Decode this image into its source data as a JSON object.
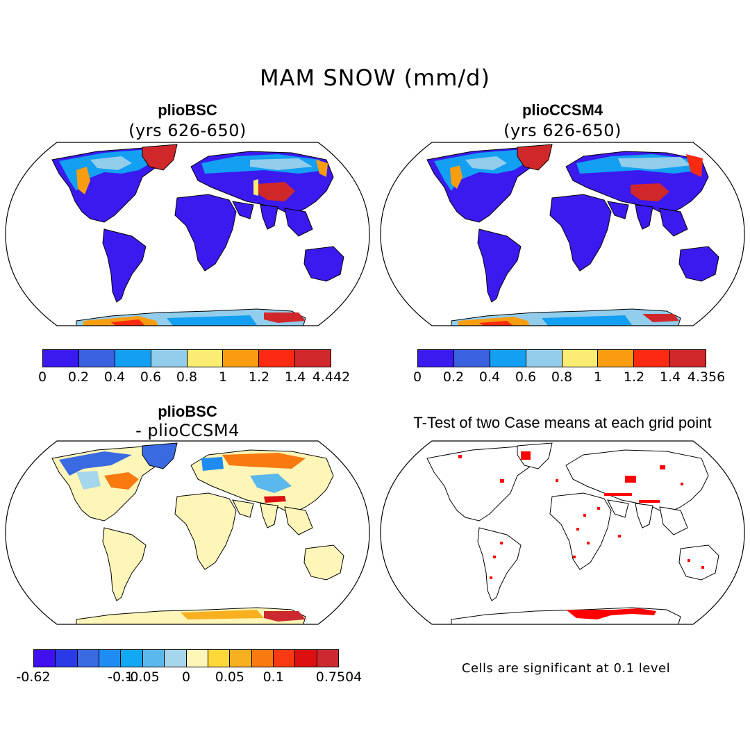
{
  "figure": {
    "title": "MAM SNOW (mm/d)"
  },
  "panels": [
    {
      "id": "plioBSC",
      "title": "plioBSC",
      "subtitle": "(yrs 626-650)",
      "colorbar": {
        "colors": [
          "#3a1aee",
          "#3a62e0",
          "#13a0f2",
          "#93cdec",
          "#fbed74",
          "#f99d10",
          "#fb2a10",
          "#d0282a"
        ],
        "ticks": [
          "0",
          "0.2",
          "0.4",
          "0.6",
          "0.8",
          "1",
          "1.2",
          "1.4",
          "4.442"
        ]
      }
    },
    {
      "id": "plioCCSM4",
      "title": "plioCCSM4",
      "subtitle": "(yrs 626-650)",
      "colorbar": {
        "colors": [
          "#3a1aee",
          "#3a62e0",
          "#13a0f2",
          "#93cdec",
          "#fbed74",
          "#f99d10",
          "#fb2a10",
          "#d0282a"
        ],
        "ticks": [
          "0",
          "0.2",
          "0.4",
          "0.6",
          "0.8",
          "1",
          "1.2",
          "1.4",
          "4.356"
        ]
      }
    },
    {
      "id": "difference",
      "title": "plioBSC",
      "subtitle": "- plioCCSM4",
      "colorbar": {
        "colors": [
          "#4010f0",
          "#2a3ae8",
          "#3a6ae2",
          "#1e8cf2",
          "#12a8f2",
          "#5ab8ec",
          "#a6d6ec",
          "#fdf6b8",
          "#fdd838",
          "#f9b020",
          "#f87a10",
          "#f83a12",
          "#dc1010",
          "#cc2a30"
        ],
        "ticks": [
          "-0.62",
          "-0.1",
          "-0.05",
          "0",
          "0.05",
          "0.1",
          "0.7504"
        ]
      }
    },
    {
      "id": "ttest",
      "title": "T-Test of two Case means at each grid point",
      "note": "Cells are significant at 0.1 level",
      "significance_color": "#ff0000"
    }
  ]
}
